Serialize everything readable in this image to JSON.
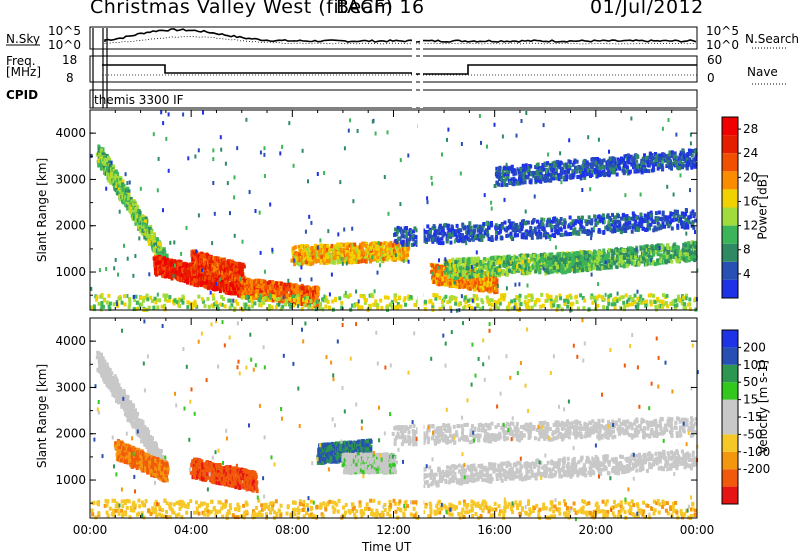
{
  "header": {
    "station": "Christmas Valley West (fitACF)",
    "beam": "Beam 16",
    "date": "01/Jul/2012"
  },
  "strip_panels": {
    "sky": {
      "left_label": "N.Sky",
      "left_ticks": [
        "10^5",
        "10^0"
      ],
      "right_label": "N.Search",
      "right_ticks": [
        "10^5",
        "10^0"
      ]
    },
    "freq": {
      "left_label_lines": [
        "Freq.",
        "[MHz]"
      ],
      "left_ticks": [
        "18",
        "8"
      ],
      "right_label": "Nave",
      "right_ticks": [
        "60",
        "0"
      ]
    },
    "cpid": {
      "label": "CPID",
      "program": "themis 3300 IF"
    }
  },
  "x_axis": {
    "label": "Time UT",
    "ticks": [
      "00:00",
      "04:00",
      "08:00",
      "12:00",
      "16:00",
      "20:00",
      "00:00"
    ]
  },
  "colors": {
    "power_scale": [
      "#1e32e6",
      "#2850b4",
      "#2f8a64",
      "#3cb45a",
      "#a0dc3c",
      "#f0d200",
      "#fa8c00",
      "#f05000",
      "#e61e00",
      "#f00000"
    ],
    "velocity_scale": [
      "#e61414",
      "#f05a0a",
      "#f5960f",
      "#f5c828",
      "#c8c8c8",
      "#c8c8c8",
      "#32c81e",
      "#2d9650",
      "#2850b4",
      "#1e32e6"
    ]
  },
  "chart_data": [
    {
      "type": "heatmap",
      "panel": "power",
      "xlabel": "Time UT",
      "ylabel": "Slant Range [km]",
      "xlim": [
        0,
        24
      ],
      "ylim": [
        180,
        4500
      ],
      "yticks": [
        1000,
        2000,
        3000,
        4000
      ],
      "colorbar": {
        "label": "Power [dB]",
        "ticks": [
          4,
          8,
          12,
          16,
          20,
          24,
          28
        ],
        "range": [
          0,
          30
        ]
      },
      "bands": [
        {
          "t": [
            0.3,
            3
          ],
          "r": [
            3600,
            1200
          ],
          "value": 12
        },
        {
          "t": [
            2.5,
            6
          ],
          "r": [
            1200,
            700
          ],
          "value": 26
        },
        {
          "t": [
            4,
            6
          ],
          "r": [
            1300,
            1000
          ],
          "value": 24
        },
        {
          "t": [
            6,
            9
          ],
          "r": [
            700,
            500
          ],
          "value": 22
        },
        {
          "t": [
            8,
            12.5
          ],
          "r": [
            1400,
            1500
          ],
          "value": 18
        },
        {
          "t": [
            13.5,
            16
          ],
          "r": [
            1000,
            800
          ],
          "value": 20
        },
        {
          "t": [
            14,
            20
          ],
          "r": [
            1100,
            1300
          ],
          "value": 12
        },
        {
          "t": [
            18,
            24
          ],
          "r": [
            1200,
            1500
          ],
          "value": 10
        },
        {
          "t": [
            12,
            24
          ],
          "r": [
            1800,
            2200
          ],
          "value": 4
        },
        {
          "t": [
            16,
            24
          ],
          "r": [
            3100,
            3500
          ],
          "value": 4
        },
        {
          "t": [
            0,
            24
          ],
          "r": [
            350,
            350
          ],
          "value": 14
        }
      ]
    },
    {
      "type": "heatmap",
      "panel": "velocity",
      "xlabel": "Time UT",
      "ylabel": "Slant Range [km]",
      "xlim": [
        0,
        24
      ],
      "ylim": [
        180,
        4500
      ],
      "yticks": [
        1000,
        2000,
        3000,
        4000
      ],
      "colorbar": {
        "label": "Velocity [m s-1]",
        "ticks": [
          200,
          100,
          50,
          15,
          -15,
          -50,
          -100,
          -200
        ],
        "range": [
          -250,
          250
        ]
      },
      "bands": [
        {
          "t": [
            0.3,
            3
          ],
          "r": [
            3600,
            1200
          ],
          "value": 0
        },
        {
          "t": [
            1,
            3
          ],
          "r": [
            1700,
            1200
          ],
          "value": -150
        },
        {
          "t": [
            4,
            6.5
          ],
          "r": [
            1300,
            1000
          ],
          "value": -180
        },
        {
          "t": [
            9,
            11
          ],
          "r": [
            1600,
            1700
          ],
          "value": 150
        },
        {
          "t": [
            10,
            12
          ],
          "r": [
            1400,
            1400
          ],
          "value": 30
        },
        {
          "t": [
            13,
            24
          ],
          "r": [
            1100,
            1500
          ],
          "value": 0
        },
        {
          "t": [
            12,
            24
          ],
          "r": [
            2000,
            2200
          ],
          "value": 0
        },
        {
          "t": [
            0,
            24
          ],
          "r": [
            400,
            400
          ],
          "value": -80
        }
      ]
    }
  ]
}
